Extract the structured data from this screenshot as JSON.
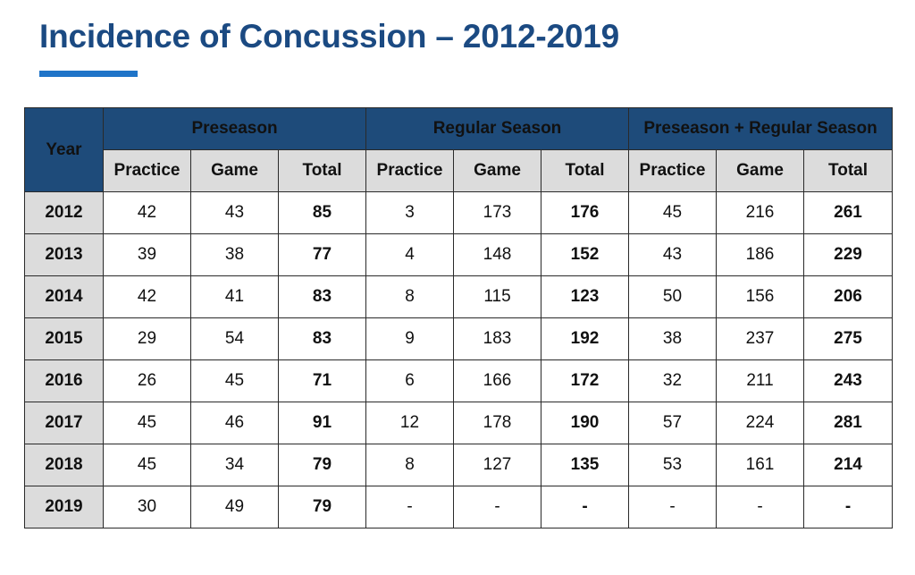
{
  "title": "Incidence of Concussion – 2012-2019",
  "header": {
    "year": "Year",
    "groups": [
      "Preseason",
      "Regular Season",
      "Preseason + Regular Season"
    ],
    "subcolumns": [
      "Practice",
      "Game",
      "Total"
    ]
  },
  "rows": [
    {
      "year": "2012",
      "pre": [
        "42",
        "43",
        "85"
      ],
      "reg": [
        "3",
        "173",
        "176"
      ],
      "both": [
        "45",
        "216",
        "261"
      ]
    },
    {
      "year": "2013",
      "pre": [
        "39",
        "38",
        "77"
      ],
      "reg": [
        "4",
        "148",
        "152"
      ],
      "both": [
        "43",
        "186",
        "229"
      ]
    },
    {
      "year": "2014",
      "pre": [
        "42",
        "41",
        "83"
      ],
      "reg": [
        "8",
        "115",
        "123"
      ],
      "both": [
        "50",
        "156",
        "206"
      ]
    },
    {
      "year": "2015",
      "pre": [
        "29",
        "54",
        "83"
      ],
      "reg": [
        "9",
        "183",
        "192"
      ],
      "both": [
        "38",
        "237",
        "275"
      ]
    },
    {
      "year": "2016",
      "pre": [
        "26",
        "45",
        "71"
      ],
      "reg": [
        "6",
        "166",
        "172"
      ],
      "both": [
        "32",
        "211",
        "243"
      ]
    },
    {
      "year": "2017",
      "pre": [
        "45",
        "46",
        "91"
      ],
      "reg": [
        "12",
        "178",
        "190"
      ],
      "both": [
        "57",
        "224",
        "281"
      ]
    },
    {
      "year": "2018",
      "pre": [
        "45",
        "34",
        "79"
      ],
      "reg": [
        "8",
        "127",
        "135"
      ],
      "both": [
        "53",
        "161",
        "214"
      ]
    },
    {
      "year": "2019",
      "pre": [
        "30",
        "49",
        "79"
      ],
      "reg": [
        "-",
        "-",
        "-"
      ],
      "both": [
        "-",
        "-",
        "-"
      ]
    }
  ],
  "colors": {
    "title": "#1b4a82",
    "accent_rule": "#1f74c8",
    "header_fill": "#1e4b7a",
    "subheader_fill": "#dcdcdc"
  }
}
